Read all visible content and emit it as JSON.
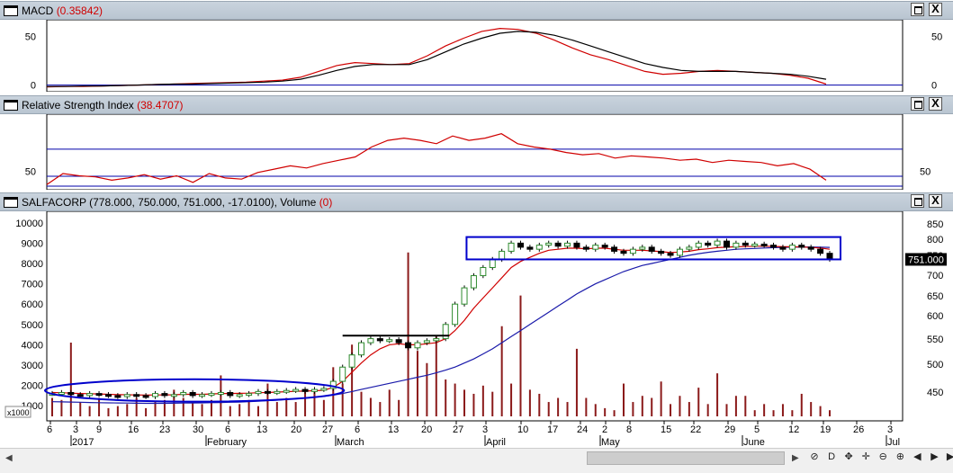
{
  "panels": {
    "macd": {
      "title": "MACD",
      "value": "(0.35842)"
    },
    "rsi": {
      "title": "Relative Strength Index",
      "value": "(38.4707)"
    },
    "price": {
      "title": "SALFACORP (778.000, 750.000, 751.000, -17.0100), Volume",
      "value": "(0)",
      "last_price_tag": "751.000",
      "volume_unit": "x1000"
    }
  },
  "window_buttons": {
    "maximize": "□",
    "close": "X"
  },
  "toolbar": {
    "icons": [
      "chain-icon",
      "d-button",
      "move-icon",
      "crosshair-icon",
      "zoom-out-icon",
      "zoom-in-icon",
      "scroll-left-icon",
      "scroll-right-icon",
      "scroll-end-icon"
    ],
    "d_label": "D",
    "glyphs": [
      "⊘",
      "D",
      "✥",
      "✛",
      "⊖",
      "⊕",
      "◀",
      "▶",
      "▶|"
    ]
  },
  "scrollbar": {
    "left_arrow": "◀",
    "right_arrow": "▶"
  },
  "chart_data": [
    {
      "type": "line",
      "name": "MACD",
      "ylim": [
        -5,
        65
      ],
      "y_ticks": [
        "50",
        "0"
      ],
      "series": [
        {
          "color": "#d00000",
          "values": [
            -2,
            -1.5,
            -1.5,
            -1,
            -0.5,
            0,
            0.5,
            1,
            1.5,
            2,
            2.5,
            3,
            4,
            5,
            8,
            14,
            20,
            23,
            22,
            21,
            22,
            30,
            40,
            48,
            55,
            58,
            57,
            53,
            46,
            38,
            31,
            26,
            20,
            14,
            11,
            12,
            14,
            15,
            14,
            13,
            12,
            10,
            7,
            1
          ]
        },
        {
          "color": "#000000",
          "values": [
            -1.5,
            -1.5,
            -1,
            -1,
            -0.5,
            0,
            0.5,
            1,
            1,
            1.5,
            2,
            2.5,
            3,
            4,
            6,
            10,
            15,
            19,
            21,
            21,
            21,
            26,
            34,
            42,
            48,
            53,
            55,
            54,
            51,
            46,
            40,
            34,
            28,
            22,
            18,
            15,
            14,
            14,
            14,
            13,
            12,
            11,
            9,
            6
          ]
        }
      ],
      "zero_line": 0
    },
    {
      "type": "line",
      "name": "RSI",
      "ylim": [
        35,
        100
      ],
      "y_ticks": [
        "50"
      ],
      "reference_lines": [
        70,
        30
      ],
      "series": [
        {
          "color": "#d00000",
          "values": [
            38,
            48,
            46,
            45,
            42,
            44,
            47,
            43,
            46,
            40,
            48,
            44,
            43,
            49,
            52,
            55,
            53,
            57,
            60,
            63,
            72,
            78,
            80,
            78,
            75,
            82,
            78,
            80,
            84,
            75,
            72,
            70,
            67,
            65,
            66,
            62,
            64,
            63,
            62,
            60,
            61,
            58,
            60,
            59,
            58,
            55,
            57,
            52,
            42
          ]
        }
      ]
    },
    {
      "type": "candlestick",
      "name": "SALFACORP",
      "ylim": [
        300,
        10300
      ],
      "y_ticks_left": [
        "10000",
        "9000",
        "8000",
        "7000",
        "6000",
        "5000",
        "4000",
        "3000",
        "2000",
        "1000"
      ],
      "y_ticks_right": [
        "850",
        "800",
        "750",
        "700",
        "650",
        "600",
        "550",
        "500",
        "450"
      ],
      "x_tick_labels": [
        "6",
        "3",
        "9",
        "16",
        "23",
        "30",
        "6",
        "13",
        "20",
        "27",
        "6",
        "13",
        "20",
        "27",
        "3",
        "10",
        "17",
        "24",
        "2",
        "8",
        "15",
        "22",
        "29",
        "5",
        "12",
        "19",
        "26",
        "3"
      ],
      "months": [
        "2017",
        "February",
        "March",
        "April",
        "May",
        "June",
        "Jul"
      ],
      "close": [
        1600,
        1650,
        1550,
        1500,
        1600,
        1550,
        1500,
        1450,
        1550,
        1500,
        1450,
        1600,
        1500,
        1550,
        1650,
        1500,
        1550,
        1600,
        1650,
        1500,
        1550,
        1600,
        1700,
        1650,
        1700,
        1750,
        1800,
        1700,
        1800,
        1850,
        2200,
        2900,
        3500,
        4100,
        4300,
        4200,
        4250,
        4100,
        3850,
        4100,
        4200,
        4300,
        5000,
        6000,
        6800,
        7400,
        7800,
        8200,
        8600,
        9000,
        8800,
        8700,
        8900,
        9000,
        8850,
        9000,
        8800,
        8700,
        8900,
        8800,
        8600,
        8500,
        8700,
        8800,
        8600,
        8500,
        8400,
        8700,
        8800,
        9000,
        8900,
        9100,
        8800,
        9000,
        8900,
        8950,
        8900,
        8800,
        8700,
        8900,
        8800,
        8700,
        8500,
        8200
      ],
      "volume": [
        900,
        800,
        3600,
        700,
        500,
        900,
        400,
        500,
        600,
        900,
        400,
        700,
        800,
        1300,
        900,
        700,
        600,
        800,
        2000,
        500,
        600,
        800,
        500,
        1600,
        700,
        900,
        700,
        1200,
        1300,
        800,
        2400,
        1600,
        3500,
        1200,
        900,
        700,
        1300,
        800,
        8000,
        3200,
        2600,
        3900,
        1800,
        1600,
        1300,
        1100,
        1500,
        1200,
        4400,
        1600,
        5900,
        1300,
        1100,
        700,
        900,
        700,
        3300,
        900,
        600,
        400,
        300,
        1600,
        700,
        1000,
        900,
        1700,
        600,
        1000,
        700,
        1400,
        600,
        2100,
        600,
        1000,
        1000,
        300,
        600,
        300,
        600,
        300,
        1100,
        700,
        500,
        300
      ],
      "ma_red": [
        1650,
        1640,
        1620,
        1600,
        1590,
        1580,
        1560,
        1550,
        1540,
        1530,
        1520,
        1530,
        1530,
        1540,
        1560,
        1560,
        1560,
        1580,
        1600,
        1600,
        1610,
        1620,
        1640,
        1650,
        1670,
        1690,
        1710,
        1720,
        1740,
        1760,
        1900,
        2200,
        2650,
        3100,
        3500,
        3800,
        4000,
        4050,
        4000,
        4000,
        4050,
        4100,
        4300,
        4700,
        5200,
        5800,
        6300,
        6800,
        7300,
        7800,
        8100,
        8300,
        8500,
        8650,
        8700,
        8750,
        8750,
        8720,
        8750,
        8750,
        8700,
        8650,
        8650,
        8650,
        8620,
        8580,
        8540,
        8560,
        8600,
        8680,
        8720,
        8780,
        8800,
        8820,
        8830,
        8850,
        8850,
        8840,
        8820,
        8820,
        8810,
        8790,
        8760,
        8700
      ],
      "ma_blue": [
        1200,
        1190,
        1180,
        1170,
        1160,
        1150,
        1140,
        1135,
        1130,
        1125,
        1120,
        1120,
        1120,
        1125,
        1130,
        1135,
        1140,
        1150,
        1160,
        1170,
        1180,
        1200,
        1220,
        1250,
        1280,
        1310,
        1340,
        1380,
        1420,
        1460,
        1520,
        1600,
        1700,
        1800,
        1900,
        2000,
        2100,
        2200,
        2300,
        2400,
        2500,
        2620,
        2750,
        2900,
        3100,
        3300,
        3550,
        3800,
        4100,
        4400,
        4700,
        5000,
        5300,
        5600,
        5900,
        6200,
        6500,
        6750,
        7000,
        7200,
        7400,
        7600,
        7750,
        7900,
        8000,
        8100,
        8200,
        8300,
        8400,
        8480,
        8550,
        8600,
        8650,
        8700,
        8720,
        8740,
        8760,
        8780,
        8790,
        8800,
        8810,
        8810,
        8800,
        8790
      ],
      "annotations": [
        {
          "shape": "ellipse",
          "color": "#0000cc",
          "from_index": 0,
          "to_index": 30,
          "y_range": [
            1200,
            2300
          ]
        },
        {
          "shape": "rectangle",
          "color": "#0000cc",
          "from_index": 45,
          "to_index": 83,
          "y_range": [
            8200,
            9300
          ]
        },
        {
          "shape": "hline",
          "color": "#000000",
          "from_index": 31,
          "to_index": 42,
          "y": 4450
        }
      ]
    }
  ]
}
